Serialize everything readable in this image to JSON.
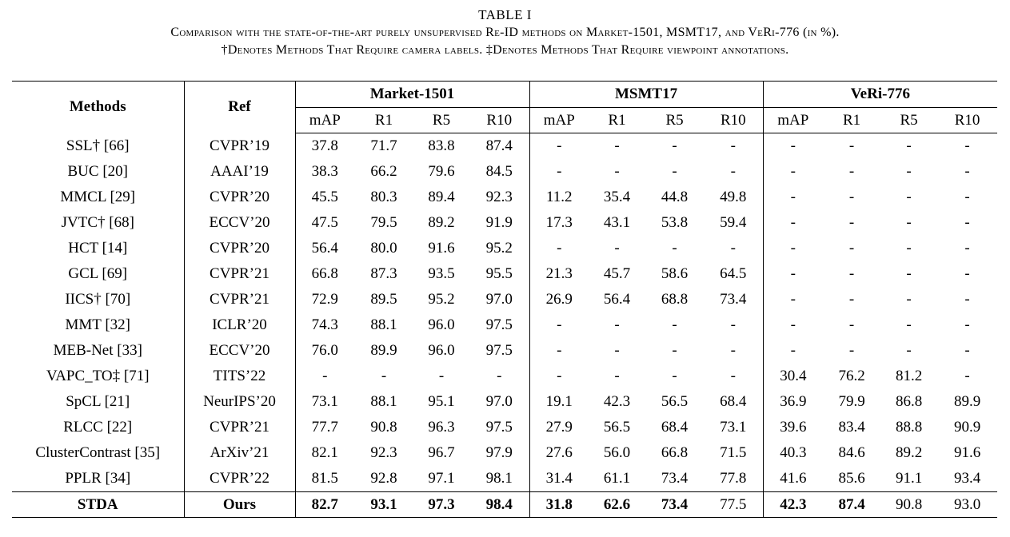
{
  "caption": {
    "label": "TABLE I",
    "line1": "Comparison with the state-of-the-art purely unsupervised Re-ID methods on Market-1501, MSMT17, and VeRi-776 (in %).",
    "line2": "†Denotes Methods That Require camera labels. ‡Denotes Methods That Require viewpoint annotations."
  },
  "headers": {
    "methods": "Methods",
    "ref": "Ref",
    "groups": [
      "Market-1501",
      "MSMT17",
      "VeRi-776"
    ],
    "metrics": [
      "mAP",
      "R1",
      "R5",
      "R10"
    ]
  },
  "rows": [
    {
      "method": "SSL† [66]",
      "ref": "CVPR’19",
      "vals": [
        "37.8",
        "71.7",
        "83.8",
        "87.4",
        "-",
        "-",
        "-",
        "-",
        "-",
        "-",
        "-",
        "-"
      ]
    },
    {
      "method": "BUC [20]",
      "ref": "AAAI’19",
      "vals": [
        "38.3",
        "66.2",
        "79.6",
        "84.5",
        "-",
        "-",
        "-",
        "-",
        "-",
        "-",
        "-",
        "-"
      ]
    },
    {
      "method": "MMCL [29]",
      "ref": "CVPR’20",
      "vals": [
        "45.5",
        "80.3",
        "89.4",
        "92.3",
        "11.2",
        "35.4",
        "44.8",
        "49.8",
        "-",
        "-",
        "-",
        "-"
      ]
    },
    {
      "method": "JVTC† [68]",
      "ref": "ECCV’20",
      "vals": [
        "47.5",
        "79.5",
        "89.2",
        "91.9",
        "17.3",
        "43.1",
        "53.8",
        "59.4",
        "-",
        "-",
        "-",
        "-"
      ]
    },
    {
      "method": "HCT [14]",
      "ref": "CVPR’20",
      "vals": [
        "56.4",
        "80.0",
        "91.6",
        "95.2",
        "-",
        "-",
        "-",
        "-",
        "-",
        "-",
        "-",
        "-"
      ]
    },
    {
      "method": "GCL [69]",
      "ref": "CVPR’21",
      "vals": [
        "66.8",
        "87.3",
        "93.5",
        "95.5",
        "21.3",
        "45.7",
        "58.6",
        "64.5",
        "-",
        "-",
        "-",
        "-"
      ]
    },
    {
      "method": "IICS† [70]",
      "ref": "CVPR’21",
      "vals": [
        "72.9",
        "89.5",
        "95.2",
        "97.0",
        "26.9",
        "56.4",
        "68.8",
        "73.4",
        "-",
        "-",
        "-",
        "-"
      ]
    },
    {
      "method": "MMT [32]",
      "ref": "ICLR’20",
      "vals": [
        "74.3",
        "88.1",
        "96.0",
        "97.5",
        "-",
        "-",
        "-",
        "-",
        "-",
        "-",
        "-",
        "-"
      ]
    },
    {
      "method": "MEB-Net [33]",
      "ref": "ECCV’20",
      "vals": [
        "76.0",
        "89.9",
        "96.0",
        "97.5",
        "-",
        "-",
        "-",
        "-",
        "-",
        "-",
        "-",
        "-"
      ]
    },
    {
      "method": "VAPC_TO‡ [71]",
      "ref": "TITS’22",
      "vals": [
        "-",
        "-",
        "-",
        "-",
        "-",
        "-",
        "-",
        "-",
        "30.4",
        "76.2",
        "81.2",
        "-"
      ]
    },
    {
      "method": "SpCL [21]",
      "ref": "NeurIPS’20",
      "vals": [
        "73.1",
        "88.1",
        "95.1",
        "97.0",
        "19.1",
        "42.3",
        "56.5",
        "68.4",
        "36.9",
        "79.9",
        "86.8",
        "89.9"
      ]
    },
    {
      "method": "RLCC [22]",
      "ref": "CVPR’21",
      "vals": [
        "77.7",
        "90.8",
        "96.3",
        "97.5",
        "27.9",
        "56.5",
        "68.4",
        "73.1",
        "39.6",
        "83.4",
        "88.8",
        "90.9"
      ]
    },
    {
      "method": "ClusterContrast [35]",
      "ref": "ArXiv’21",
      "vals": [
        "82.1",
        "92.3",
        "96.7",
        "97.9",
        "27.6",
        "56.0",
        "66.8",
        "71.5",
        "40.3",
        "84.6",
        "89.2",
        "91.6"
      ]
    },
    {
      "method": "PPLR [34]",
      "ref": "CVPR’22",
      "vals": [
        "81.5",
        "92.8",
        "97.1",
        "98.1",
        "31.4",
        "61.1",
        "73.4",
        "77.8",
        "41.6",
        "85.6",
        "91.1",
        "93.4"
      ]
    }
  ],
  "ours": {
    "method": "STDA",
    "ref": "Ours",
    "vals": [
      "82.7",
      "93.1",
      "97.3",
      "98.4",
      "31.8",
      "62.6",
      "73.4",
      "77.5",
      "42.3",
      "87.4",
      "90.8",
      "93.0"
    ],
    "bold": [
      true,
      true,
      true,
      true,
      true,
      true,
      true,
      false,
      true,
      true,
      false,
      false
    ]
  }
}
